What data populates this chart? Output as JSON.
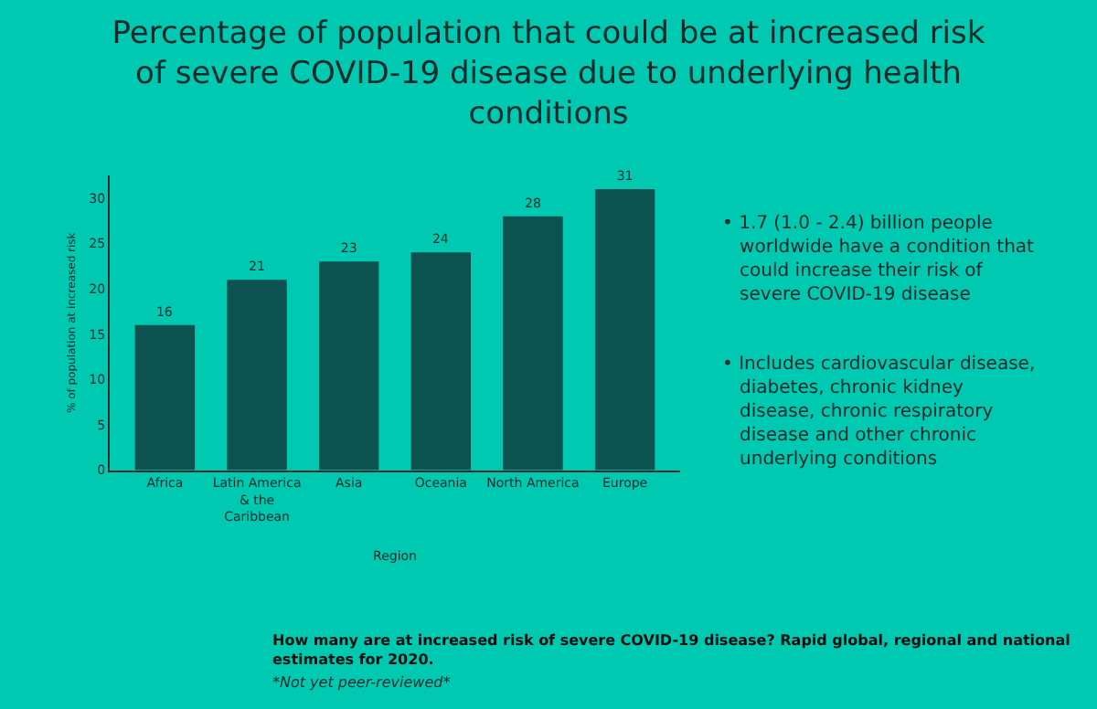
{
  "chart_data": {
    "type": "bar",
    "title": "Percentage of population that could be at increased risk of severe COVID-19 disease due to underlying health conditions",
    "xlabel": "Region",
    "ylabel": "% of population at increased risk",
    "categories": [
      "Africa",
      "Latin America & the Caribbean",
      "Asia",
      "Oceania",
      "North America",
      "Europe"
    ],
    "values": [
      16,
      21,
      23,
      24,
      28,
      31
    ],
    "color": "#0b5251",
    "data_labels": true,
    "ylim": [
      0,
      32.5
    ],
    "yticks": [
      0,
      5,
      10,
      15,
      20,
      25,
      30
    ],
    "grid": false,
    "legend": false,
    "annotations": [
      "• 1.7 (1.0 - 2.4) billion people worldwide have a condition that could increase their risk of severe COVID-19 disease",
      "• Includes cardiovascular disease, diabetes, chronic kidney disease, chronic respiratory disease and other chronic underlying conditions",
      "How many are at increased risk of severe COVID-19 disease? Rapid global, regional and national estimates for 2020.",
      "*Not yet peer-reviewed*"
    ]
  }
}
